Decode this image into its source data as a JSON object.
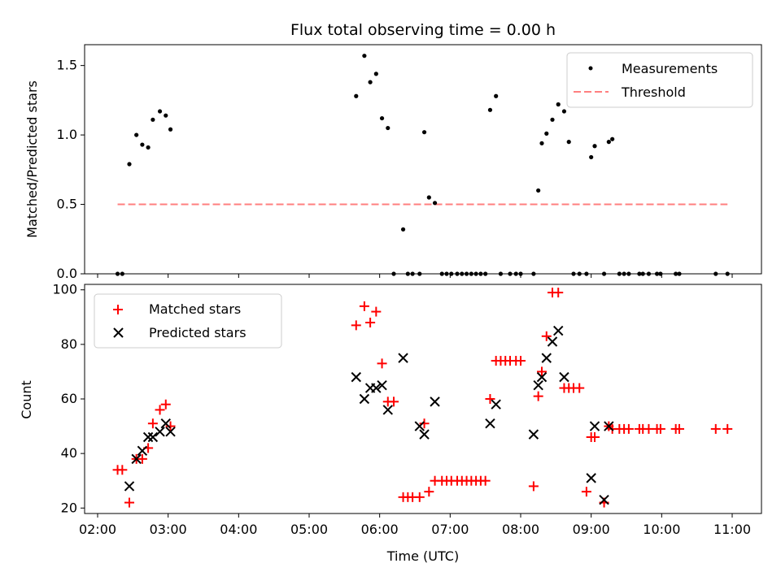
{
  "chart_data": [
    {
      "type": "scatter",
      "title": "Flux total observing time = 0.00 h",
      "xlabel": "",
      "ylabel": "Matched/Predicted stars",
      "xlim": [
        "02:00",
        "11:00"
      ],
      "ylim": [
        0,
        1.65
      ],
      "yticks": [
        "0.0",
        "0.5",
        "1.0",
        "1.5"
      ],
      "yticks_values": [
        0,
        0.5,
        1.0,
        1.5
      ],
      "legend": {
        "position": "top-right",
        "entries": [
          "Measurements",
          "Threshold"
        ]
      },
      "series": [
        {
          "name": "Measurements",
          "color": "#000000",
          "marker": "dot",
          "x": [
            "02:17",
            "02:21",
            "02:27",
            "02:33",
            "02:38",
            "02:43",
            "02:47",
            "02:53",
            "02:58",
            "03:02",
            "05:40",
            "05:47",
            "05:52",
            "05:57",
            "06:02",
            "06:07",
            "06:12",
            "06:20",
            "06:24",
            "06:28",
            "06:34",
            "06:38",
            "06:42",
            "06:47",
            "06:53",
            "06:57",
            "07:01",
            "07:06",
            "07:10",
            "07:14",
            "07:18",
            "07:22",
            "07:26",
            "07:30",
            "07:34",
            "07:39",
            "07:43",
            "07:51",
            "07:56",
            "08:00",
            "08:11",
            "08:15",
            "08:18",
            "08:22",
            "08:27",
            "08:32",
            "08:37",
            "08:41",
            "08:45",
            "08:50",
            "08:56",
            "09:00",
            "09:03",
            "09:11",
            "09:15",
            "09:18",
            "09:24",
            "09:28",
            "09:32",
            "09:41",
            "09:44",
            "09:49",
            "09:56",
            "09:59",
            "10:12",
            "10:15",
            "10:46",
            "10:56"
          ],
          "y": [
            0,
            0,
            0.79,
            1.0,
            0.93,
            0.91,
            1.11,
            1.17,
            1.14,
            1.04,
            1.28,
            1.57,
            1.38,
            1.44,
            1.12,
            1.05,
            0,
            0.32,
            0,
            0,
            0,
            1.02,
            0.55,
            0.51,
            0,
            0,
            0,
            0,
            0,
            0,
            0,
            0,
            0,
            0,
            1.18,
            1.28,
            0,
            0,
            0,
            0,
            0,
            0.6,
            0.94,
            1.01,
            1.11,
            1.22,
            1.17,
            0.95,
            0,
            0,
            0,
            0.84,
            0.92,
            0,
            0.95,
            0.97,
            0,
            0,
            0,
            0,
            0,
            0,
            0,
            0,
            0,
            0,
            0,
            0
          ]
        },
        {
          "name": "Threshold",
          "color": "#ff7f7f",
          "style": "dashed",
          "x": [
            "02:17",
            "10:56"
          ],
          "y": [
            0.5,
            0.5
          ]
        }
      ]
    },
    {
      "type": "scatter",
      "title": "",
      "xlabel": "Time (UTC)",
      "ylabel": "Count",
      "xlim": [
        "02:00",
        "11:00"
      ],
      "xticks": [
        "02:00",
        "03:00",
        "04:00",
        "05:00",
        "06:00",
        "07:00",
        "08:00",
        "09:00",
        "10:00",
        "11:00"
      ],
      "ylim": [
        18,
        102
      ],
      "yticks": [
        "20",
        "40",
        "60",
        "80",
        "100"
      ],
      "yticks_values": [
        20,
        40,
        60,
        80,
        100
      ],
      "legend": {
        "position": "top-left",
        "entries": [
          "Matched stars",
          "Predicted stars"
        ]
      },
      "series": [
        {
          "name": "Matched stars",
          "color": "#ff0000",
          "marker": "plus",
          "x": [
            "02:17",
            "02:21",
            "02:27",
            "02:33",
            "02:38",
            "02:43",
            "02:47",
            "02:53",
            "02:58",
            "03:02",
            "05:40",
            "05:47",
            "05:52",
            "05:57",
            "06:02",
            "06:07",
            "06:12",
            "06:20",
            "06:24",
            "06:28",
            "06:34",
            "06:38",
            "06:42",
            "06:47",
            "06:53",
            "06:57",
            "07:01",
            "07:06",
            "07:10",
            "07:14",
            "07:18",
            "07:22",
            "07:26",
            "07:30",
            "07:34",
            "07:39",
            "07:43",
            "07:47",
            "07:51",
            "07:56",
            "08:00",
            "08:11",
            "08:15",
            "08:18",
            "08:22",
            "08:27",
            "08:32",
            "08:37",
            "08:41",
            "08:45",
            "08:50",
            "08:56",
            "09:00",
            "09:03",
            "09:11",
            "09:15",
            "09:18",
            "09:24",
            "09:28",
            "09:32",
            "09:41",
            "09:44",
            "09:49",
            "09:56",
            "09:59",
            "10:12",
            "10:15",
            "10:46",
            "10:56"
          ],
          "y": [
            34,
            34,
            22,
            38,
            38,
            42,
            51,
            56,
            58,
            50,
            87,
            94,
            88,
            92,
            73,
            59,
            59,
            24,
            24,
            24,
            24,
            51,
            26,
            30,
            30,
            30,
            30,
            30,
            30,
            30,
            30,
            30,
            30,
            30,
            60,
            74,
            74,
            74,
            74,
            74,
            74,
            28,
            61,
            70,
            83,
            99,
            99,
            64,
            64,
            64,
            64,
            26,
            46,
            46,
            22,
            50,
            49,
            49,
            49,
            49,
            49,
            49,
            49,
            49,
            49,
            49,
            49,
            49,
            49
          ]
        },
        {
          "name": "Predicted stars",
          "color": "#000000",
          "marker": "x",
          "x": [
            "02:27",
            "02:33",
            "02:38",
            "02:43",
            "02:47",
            "02:53",
            "02:58",
            "03:02",
            "05:40",
            "05:47",
            "05:52",
            "05:57",
            "06:02",
            "06:07",
            "06:20",
            "06:34",
            "06:38",
            "06:47",
            "07:34",
            "07:39",
            "08:11",
            "08:15",
            "08:18",
            "08:22",
            "08:27",
            "08:32",
            "08:37",
            "09:00",
            "09:03",
            "09:11",
            "09:15"
          ],
          "y": [
            28,
            38,
            41,
            46,
            46,
            48,
            51,
            48,
            68,
            60,
            64,
            64,
            65,
            56,
            75,
            50,
            47,
            59,
            51,
            58,
            47,
            65,
            68,
            75,
            81,
            85,
            68,
            31,
            50,
            23,
            50
          ]
        }
      ]
    }
  ]
}
